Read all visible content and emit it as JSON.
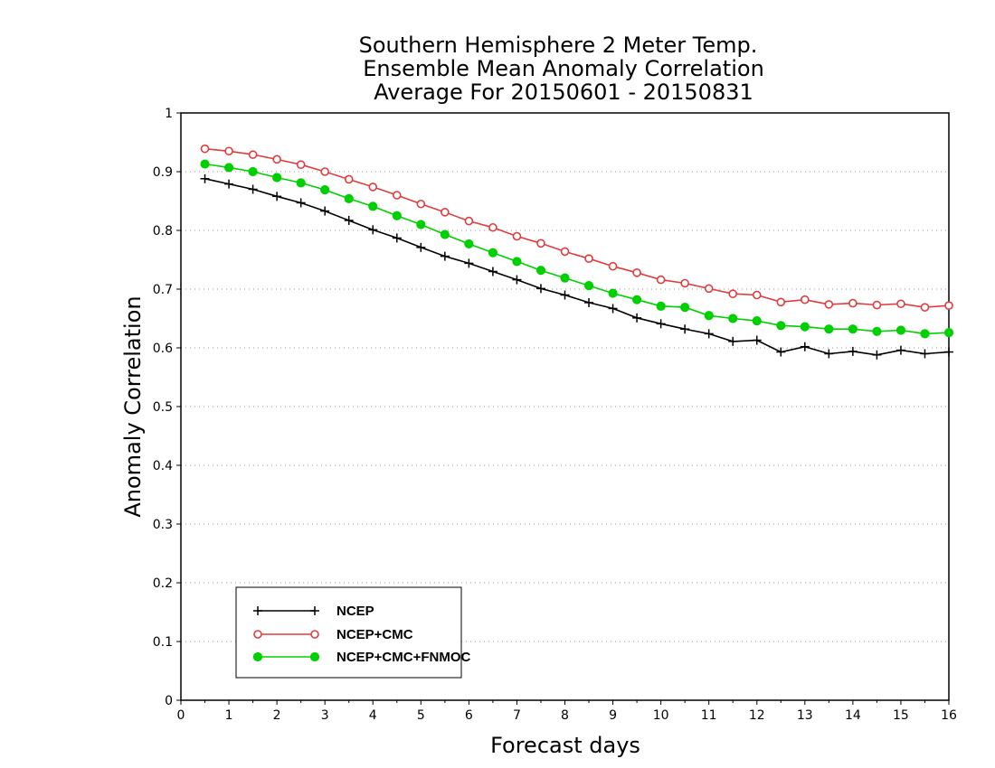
{
  "chart_data": {
    "type": "line",
    "title_lines": [
      "Southern Hemisphere 2 Meter Temp.",
      "Ensemble Mean Anomaly Correlation",
      "Average For 20150601 - 20150831"
    ],
    "xlabel": "Forecast days",
    "ylabel": "Anomaly Correlation",
    "xlim": [
      0,
      16
    ],
    "ylim": [
      0,
      1
    ],
    "x_ticks": [
      "0",
      "1",
      "2",
      "3",
      "4",
      "5",
      "6",
      "7",
      "8",
      "9",
      "10",
      "11",
      "12",
      "13",
      "14",
      "15",
      "16"
    ],
    "y_ticks": [
      "0",
      "0.1",
      "0.2",
      "0.3",
      "0.4",
      "0.5",
      "0.6",
      "0.7",
      "0.8",
      "0.9",
      "1"
    ],
    "grid": "horizontal-dotted",
    "legend_position": "bottom-left",
    "x": [
      0.5,
      1,
      1.5,
      2,
      2.5,
      3,
      3.5,
      4,
      4.5,
      5,
      5.5,
      6,
      6.5,
      7,
      7.5,
      8,
      8.5,
      9,
      9.5,
      10,
      10.5,
      11,
      11.5,
      12,
      12.5,
      13,
      13.5,
      14,
      14.5,
      15,
      15.5,
      16
    ],
    "series": [
      {
        "name": "NCEP",
        "color": "#000000",
        "marker": "plus",
        "values": [
          0.888,
          0.879,
          0.87,
          0.858,
          0.847,
          0.833,
          0.817,
          0.801,
          0.787,
          0.771,
          0.756,
          0.744,
          0.73,
          0.716,
          0.701,
          0.69,
          0.677,
          0.667,
          0.651,
          0.641,
          0.632,
          0.624,
          0.611,
          0.613,
          0.593,
          0.602,
          0.59,
          0.594,
          0.588,
          0.596,
          0.59,
          0.593
        ]
      },
      {
        "name": "NCEP+CMC",
        "color": "#e03c3c",
        "marker": "open-circle",
        "values": [
          0.939,
          0.935,
          0.929,
          0.921,
          0.912,
          0.9,
          0.887,
          0.874,
          0.86,
          0.845,
          0.831,
          0.816,
          0.805,
          0.79,
          0.778,
          0.764,
          0.752,
          0.739,
          0.728,
          0.716,
          0.71,
          0.701,
          0.692,
          0.69,
          0.678,
          0.682,
          0.674,
          0.676,
          0.673,
          0.675,
          0.669,
          0.672
        ]
      },
      {
        "name": "NCEP+CMC+FNMOC",
        "color": "#00d000",
        "marker": "filled-circle",
        "values": [
          0.913,
          0.907,
          0.9,
          0.89,
          0.881,
          0.869,
          0.854,
          0.841,
          0.825,
          0.81,
          0.793,
          0.777,
          0.762,
          0.747,
          0.732,
          0.719,
          0.706,
          0.693,
          0.682,
          0.671,
          0.669,
          0.655,
          0.65,
          0.646,
          0.638,
          0.636,
          0.632,
          0.632,
          0.628,
          0.63,
          0.624,
          0.626
        ]
      }
    ]
  }
}
